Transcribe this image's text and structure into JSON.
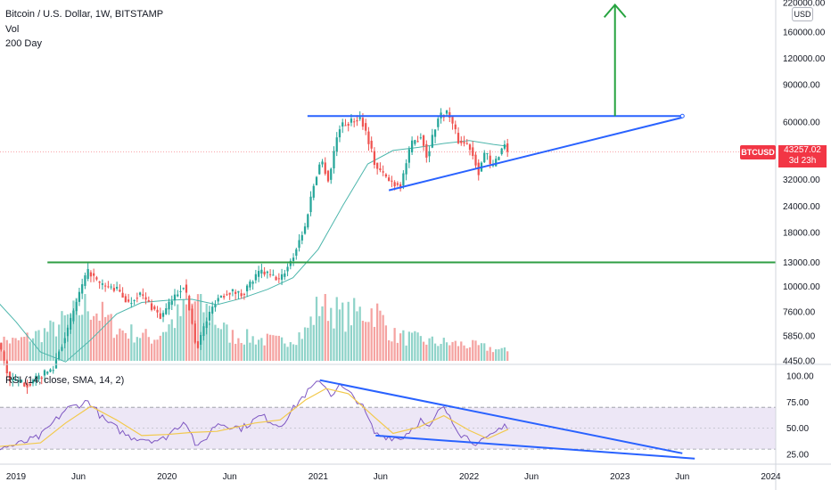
{
  "header": {
    "title": "Bitcoin / U.S. Dollar, 1W, BITSTAMP",
    "vol_label": "Vol",
    "ma_label": "200 Day"
  },
  "currency_badge": "USD",
  "symbol_tag": "BTCUSD",
  "last_price": "43257.02",
  "countdown": "3d 23h",
  "rsi_label": "RSI (14, close, SMA, 14, 2)",
  "colors": {
    "up": "#26a69a",
    "down": "#ef5350",
    "ma": "#4db6ac",
    "rsi": "#7e57c2",
    "rsi_ma": "#f2c94c",
    "trend_blue": "#2962ff",
    "support_green": "#2e9e43",
    "target_arrow": "#26a33f",
    "price_tag": "#f23645",
    "rsi_band": "#ede7f6"
  },
  "chart_data": [
    {
      "type": "candlestick",
      "scale": "log",
      "ylim": [
        4200,
        230000
      ],
      "y_ticks": [
        "220000.00",
        "160000.00",
        "120000.00",
        "90000.00",
        "60000.00",
        "43257.02",
        "32000.00",
        "24000.00",
        "18000.00",
        "13000.00",
        "10000.00",
        "7600.00",
        "5850.00",
        "4450.00"
      ],
      "x_ticks": [
        {
          "label": "2019",
          "x": "2019-01-01"
        },
        {
          "label": "Jun",
          "x": "2019-06-01"
        },
        {
          "label": "2020",
          "x": "2020-01-01"
        },
        {
          "label": "Jun",
          "x": "2020-06-01"
        },
        {
          "label": "2021",
          "x": "2021-01-01"
        },
        {
          "label": "Jun",
          "x": "2021-06-01"
        },
        {
          "label": "2022",
          "x": "2022-01-01"
        },
        {
          "label": "Jun",
          "x": "2022-06-01"
        },
        {
          "label": "2023",
          "x": "2023-01-01"
        },
        {
          "label": "Jun",
          "x": "2023-06-01"
        },
        {
          "label": "2024",
          "x": "2024-01-01"
        }
      ],
      "price_path": [
        [
          "2018-11-05",
          6400
        ],
        [
          "2018-12-15",
          3600
        ],
        [
          "2019-02-01",
          3450
        ],
        [
          "2019-04-01",
          4100
        ],
        [
          "2019-05-10",
          6500
        ],
        [
          "2019-06-26",
          11900
        ],
        [
          "2019-07-20",
          10200
        ],
        [
          "2019-09-01",
          9700
        ],
        [
          "2019-10-01",
          8300
        ],
        [
          "2019-10-25",
          9300
        ],
        [
          "2019-12-18",
          7100
        ],
        [
          "2020-02-10",
          10200
        ],
        [
          "2020-03-12",
          5000
        ],
        [
          "2020-05-01",
          8800
        ],
        [
          "2020-06-01",
          9500
        ],
        [
          "2020-07-01",
          9200
        ],
        [
          "2020-08-15",
          11800
        ],
        [
          "2020-10-01",
          10700
        ],
        [
          "2020-11-01",
          13800
        ],
        [
          "2020-12-01",
          19200
        ],
        [
          "2021-01-08",
          40000
        ],
        [
          "2021-01-27",
          31000
        ],
        [
          "2021-02-21",
          57000
        ],
        [
          "2021-04-14",
          63000
        ],
        [
          "2021-05-19",
          37000
        ],
        [
          "2021-06-22",
          31500
        ],
        [
          "2021-07-20",
          30000
        ],
        [
          "2021-08-15",
          47000
        ],
        [
          "2021-09-07",
          52000
        ],
        [
          "2021-09-21",
          40500
        ],
        [
          "2021-10-20",
          64000
        ],
        [
          "2021-11-10",
          67000
        ],
        [
          "2021-12-05",
          49000
        ],
        [
          "2022-01-01",
          46500
        ],
        [
          "2022-01-24",
          35000
        ],
        [
          "2022-02-10",
          44000
        ],
        [
          "2022-02-24",
          35500
        ],
        [
          "2022-03-28",
          47500
        ],
        [
          "2022-04-06",
          43257
        ]
      ],
      "moving_average_200_day": [
        [
          "2018-11-05",
          9000
        ],
        [
          "2019-01-01",
          6800
        ],
        [
          "2019-03-01",
          4900
        ],
        [
          "2019-05-01",
          4400
        ],
        [
          "2019-07-01",
          5600
        ],
        [
          "2019-09-01",
          7400
        ],
        [
          "2019-11-01",
          8400
        ],
        [
          "2020-01-01",
          8600
        ],
        [
          "2020-03-01",
          8700
        ],
        [
          "2020-05-01",
          8200
        ],
        [
          "2020-07-01",
          8800
        ],
        [
          "2020-09-01",
          9700
        ],
        [
          "2020-11-01",
          11000
        ],
        [
          "2021-01-01",
          15000
        ],
        [
          "2021-03-01",
          24000
        ],
        [
          "2021-05-01",
          38000
        ],
        [
          "2021-07-01",
          44000
        ],
        [
          "2021-09-01",
          45500
        ],
        [
          "2021-11-01",
          47500
        ],
        [
          "2022-01-01",
          49000
        ],
        [
          "2022-03-01",
          47000
        ],
        [
          "2022-04-06",
          46000
        ]
      ],
      "volume_path": [
        [
          "2018-11-05",
          0.35
        ],
        [
          "2019-01-01",
          0.3
        ],
        [
          "2019-04-01",
          0.5
        ],
        [
          "2019-06-26",
          0.9
        ],
        [
          "2019-09-01",
          0.5
        ],
        [
          "2019-12-01",
          0.35
        ],
        [
          "2020-03-12",
          0.95
        ],
        [
          "2020-06-01",
          0.4
        ],
        [
          "2020-10-01",
          0.3
        ],
        [
          "2020-12-01",
          0.45
        ],
        [
          "2021-01-10",
          0.95
        ],
        [
          "2021-03-01",
          0.7
        ],
        [
          "2021-05-19",
          0.8
        ],
        [
          "2021-07-01",
          0.4
        ],
        [
          "2021-10-01",
          0.3
        ],
        [
          "2022-01-01",
          0.25
        ],
        [
          "2022-04-06",
          0.15
        ]
      ],
      "trendlines": [
        {
          "name": "resistance",
          "from": [
            "2021-01-01",
            64000
          ],
          "to": [
            "2023-06-01",
            64000
          ]
        },
        {
          "name": "ascending-support",
          "from": [
            "2021-06-21",
            28500
          ],
          "to": [
            "2023-06-01",
            63000
          ]
        },
        {
          "name": "horizontal-support",
          "from": [
            "2019-03-18",
            13000
          ],
          "to": [
            "2024-04-01",
            13000
          ]
        },
        {
          "name": "target-arrow",
          "from": [
            "2022-12-20",
            64000
          ],
          "to": [
            "2022-12-20",
            215000
          ]
        }
      ]
    },
    {
      "type": "line",
      "ylim": [
        20,
        102
      ],
      "y_ticks": [
        100.0,
        75.0,
        50.0,
        25.0
      ],
      "bands": [
        30,
        70
      ],
      "midline": 50,
      "rsi_path": [
        [
          "2018-11-05",
          30
        ],
        [
          "2019-01-01",
          34
        ],
        [
          "2019-03-01",
          42
        ],
        [
          "2019-05-01",
          68
        ],
        [
          "2019-06-26",
          76
        ],
        [
          "2019-08-01",
          58
        ],
        [
          "2019-10-01",
          42
        ],
        [
          "2019-12-18",
          38
        ],
        [
          "2020-02-15",
          58
        ],
        [
          "2020-03-15",
          30
        ],
        [
          "2020-05-01",
          55
        ],
        [
          "2020-07-01",
          50
        ],
        [
          "2020-08-15",
          62
        ],
        [
          "2020-10-01",
          52
        ],
        [
          "2020-11-20",
          78
        ],
        [
          "2020-12-20",
          90
        ],
        [
          "2021-01-10",
          95
        ],
        [
          "2021-02-01",
          82
        ],
        [
          "2021-02-21",
          91
        ],
        [
          "2021-04-14",
          74
        ],
        [
          "2021-05-19",
          44
        ],
        [
          "2021-07-20",
          40
        ],
        [
          "2021-09-07",
          58
        ],
        [
          "2021-09-25",
          48
        ],
        [
          "2021-10-25",
          70
        ],
        [
          "2021-11-15",
          63
        ],
        [
          "2021-12-10",
          45
        ],
        [
          "2022-01-24",
          35
        ],
        [
          "2022-02-24",
          42
        ],
        [
          "2022-03-28",
          55
        ],
        [
          "2022-04-06",
          48
        ]
      ],
      "rsi_ma_path": [
        [
          "2018-11-05",
          32
        ],
        [
          "2019-03-01",
          36
        ],
        [
          "2019-05-01",
          55
        ],
        [
          "2019-07-01",
          71
        ],
        [
          "2019-09-01",
          58
        ],
        [
          "2019-11-01",
          43
        ],
        [
          "2020-01-01",
          44
        ],
        [
          "2020-03-01",
          46
        ],
        [
          "2020-05-01",
          47
        ],
        [
          "2020-08-01",
          55
        ],
        [
          "2020-10-01",
          58
        ],
        [
          "2020-12-01",
          77
        ],
        [
          "2021-01-20",
          88
        ],
        [
          "2021-03-15",
          83
        ],
        [
          "2021-05-19",
          60
        ],
        [
          "2021-07-01",
          45
        ],
        [
          "2021-09-01",
          51
        ],
        [
          "2021-11-01",
          62
        ],
        [
          "2022-01-01",
          48
        ],
        [
          "2022-02-15",
          40
        ],
        [
          "2022-04-06",
          49
        ]
      ],
      "trendlines": [
        {
          "name": "rsi-upper",
          "from": [
            "2021-01-05",
            96
          ],
          "to": [
            "2023-06-01",
            26
          ]
        },
        {
          "name": "rsi-lower",
          "from": [
            "2021-05-20",
            43
          ],
          "to": [
            "2023-07-01",
            21
          ]
        }
      ]
    }
  ]
}
